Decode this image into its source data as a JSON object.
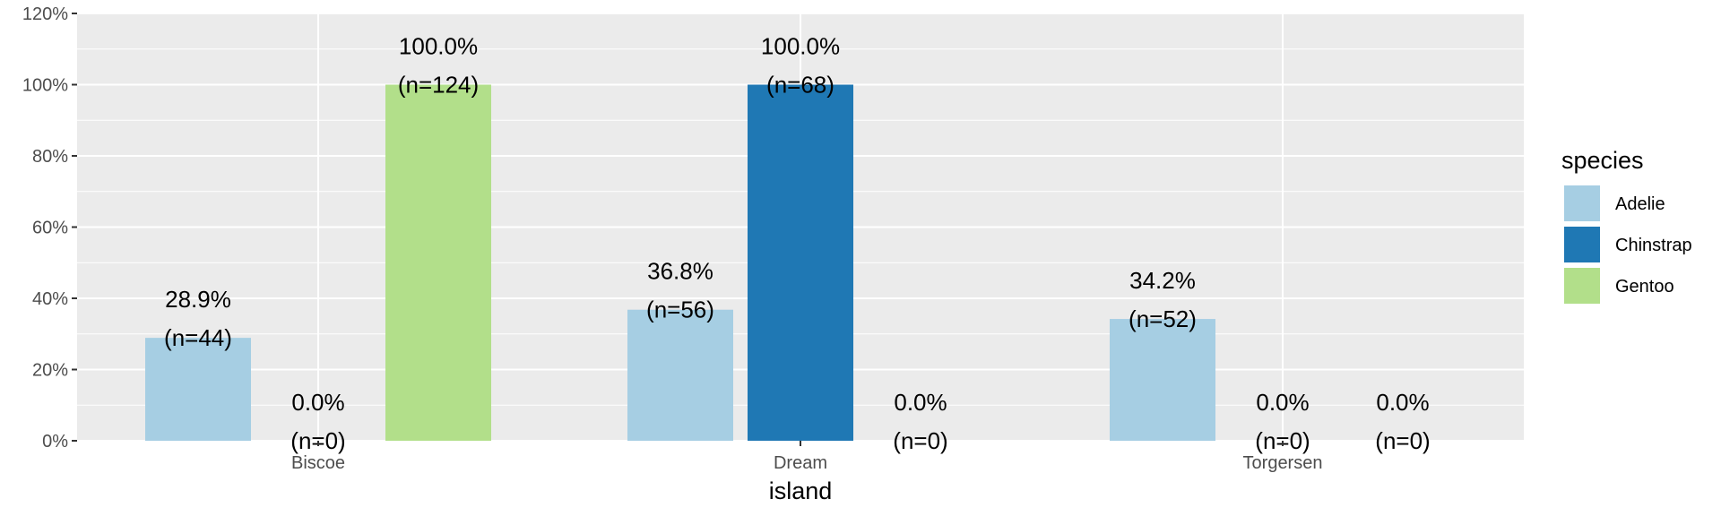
{
  "chart_data": {
    "type": "bar",
    "categories": [
      "Biscoe",
      "Dream",
      "Torgersen"
    ],
    "series": [
      {
        "name": "Adelie",
        "color": "#a6cee3",
        "values": [
          28.9,
          36.8,
          34.2
        ],
        "labels": [
          "28.9%",
          "36.8%",
          "34.2%"
        ],
        "counts": [
          "(n=44)",
          "(n=56)",
          "(n=52)"
        ]
      },
      {
        "name": "Chinstrap",
        "color": "#1f78b4",
        "values": [
          0.0,
          100.0,
          0.0
        ],
        "labels": [
          "0.0%",
          "100.0%",
          "0.0%"
        ],
        "counts": [
          "(n=0)",
          "(n=68)",
          "(n=0)"
        ]
      },
      {
        "name": "Gentoo",
        "color": "#b2df8a",
        "values": [
          100.0,
          0.0,
          0.0
        ],
        "labels": [
          "100.0%",
          "0.0%",
          "0.0%"
        ],
        "counts": [
          "(n=124)",
          "(n=0)",
          "(n=0)"
        ]
      }
    ],
    "xlabel": "island",
    "ylabel": "",
    "ylim": [
      0,
      120
    ],
    "yticks": [
      0,
      20,
      40,
      60,
      80,
      100,
      120
    ],
    "ytick_labels": [
      "0%",
      "20%",
      "40%",
      "60%",
      "80%",
      "100%",
      "120%"
    ],
    "legend_title": "species",
    "legend_position": "right",
    "grid": true,
    "panel_color": "#ebebeb",
    "grid_color": "#ffffff"
  }
}
